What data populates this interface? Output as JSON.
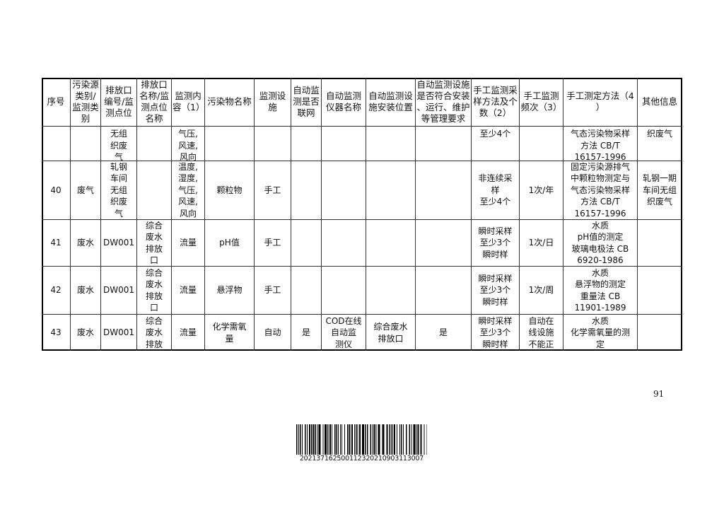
{
  "table": {
    "headers": [
      "序号",
      "污染源\n类别/\n监测类\n别",
      "排放口\n编号/监\n测点位",
      "排放口\n名称/监\n测点位\n名称",
      "监测内\n容（1）",
      "污染物名称",
      "监测设施",
      "自动监\n测是否\n联网",
      "自动监测\n仪器名称",
      "自动监测设\n施安装位置",
      "自动监测设施\n是否符合安装\n、运行、维护\n等管理要求",
      "手工监测采\n样方法及个\n数（2）",
      "手工监测\n频次（3）",
      "手工测定方法（4\n）",
      "其他信息"
    ],
    "rows": [
      [
        "",
        "",
        "无组\n织废\n气",
        "",
        "气压,\n风速,\n风向",
        "",
        "",
        "",
        "",
        "",
        "",
        "至少4个",
        "",
        "气态污染物采样\n方法 CB/T\n16157-1996",
        "织废气"
      ],
      [
        "40",
        "废气",
        "轧钢\n车间\n无组\n织废\n气",
        "",
        "温度,\n湿度,\n气压,\n风速,\n风向",
        "颗粒物",
        "手工",
        "",
        "",
        "",
        "",
        "非连续采\n样\n至少4个",
        "1次/年",
        "固定污染源排气\n中颗粒物测定与\n气态污染物采样\n方法 CB/T\n16157-1996",
        "轧钢一期\n车间无组\n织废气"
      ],
      [
        "41",
        "废水",
        "DW001",
        "综合\n废水\n排放\n口",
        "流量",
        "pH值",
        "手工",
        "",
        "",
        "",
        "",
        "瞬时采样\n至少3个\n瞬时样",
        "1次/日",
        "水质\npH值的测定\n玻璃电极法 CB\n6920-1986",
        ""
      ],
      [
        "42",
        "废水",
        "DW001",
        "综合\n废水\n排放\n口",
        "流量",
        "悬浮物",
        "手工",
        "",
        "",
        "",
        "",
        "瞬时采样\n至少3个\n瞬时样",
        "1次/周",
        "水质\n悬浮物的测定\n重量法 CB\n11901-1989",
        ""
      ],
      [
        "43",
        "废水",
        "DW001",
        "综合\n废水\n排放",
        "流量",
        "化学需氧\n量",
        "自动",
        "是",
        "COD在线\n自动监\n测仪",
        "综合废水\n排放口",
        "是",
        "瞬时采样\n至少3个\n瞬时样",
        "自动在\n线设施\n不能正",
        "水质\n化学需氧量的测\n定",
        ""
      ]
    ]
  },
  "page_number": "91",
  "barcode": {
    "number": "202137162500112320210903113007"
  }
}
